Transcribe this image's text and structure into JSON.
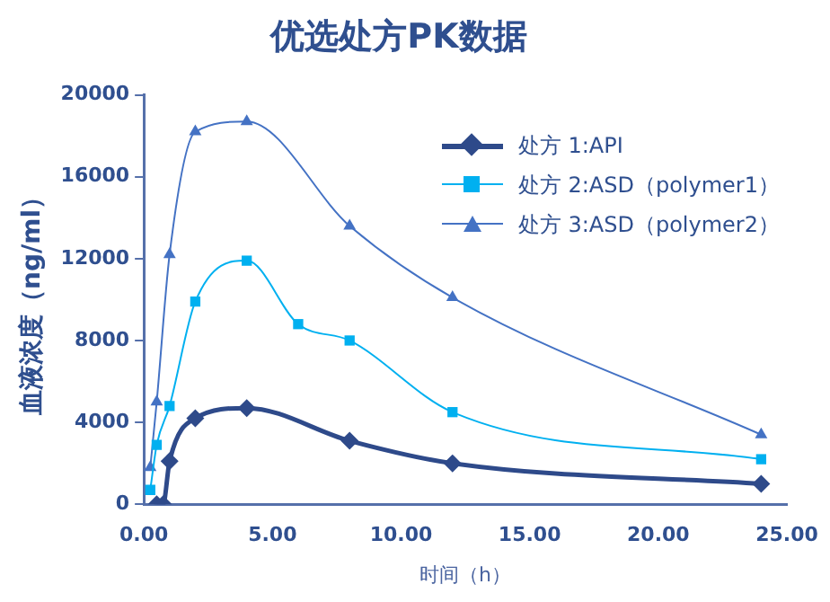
{
  "chart_data": {
    "type": "line",
    "title": "优选处方PK数据",
    "xlabel": "时间（h）",
    "ylabel": "血液浓度（ng/ml）",
    "xlim": [
      0,
      25
    ],
    "xticks": [
      {
        "value": 0,
        "label": "0.00"
      },
      {
        "value": 5,
        "label": "5.00"
      },
      {
        "value": 10,
        "label": "10.00"
      },
      {
        "value": 15,
        "label": "15.00"
      },
      {
        "value": 20,
        "label": "20.00"
      },
      {
        "value": 25,
        "label": "25.00"
      }
    ],
    "ylim": [
      0,
      20000
    ],
    "yticks": [
      0,
      4000,
      8000,
      12000,
      16000,
      20000
    ],
    "grid": false,
    "legend": "top right",
    "series": [
      {
        "name": "处方 1:API",
        "color": "#2e4a8a",
        "marker": "diamond",
        "x": [
          0.5,
          0.75,
          1,
          2,
          4,
          8,
          12,
          24
        ],
        "values": [
          0,
          0,
          2100,
          4200,
          4700,
          3100,
          2000,
          1000
        ]
      },
      {
        "name": "处方 2:ASD（polymer1）",
        "color": "#00b0f0",
        "marker": "square",
        "x": [
          0.25,
          0.5,
          1,
          2,
          4,
          6,
          8,
          12,
          24
        ],
        "values": [
          700,
          2900,
          4800,
          9900,
          11900,
          8800,
          8000,
          4500,
          2200
        ]
      },
      {
        "name": "处方 3:ASD（polymer2）",
        "color": "#4472c4",
        "marker": "triangle",
        "x": [
          0.25,
          0.5,
          1,
          2,
          4,
          8,
          12,
          24
        ],
        "values": [
          1800,
          5000,
          12200,
          18200,
          18700,
          13600,
          10100,
          3400
        ]
      }
    ]
  }
}
